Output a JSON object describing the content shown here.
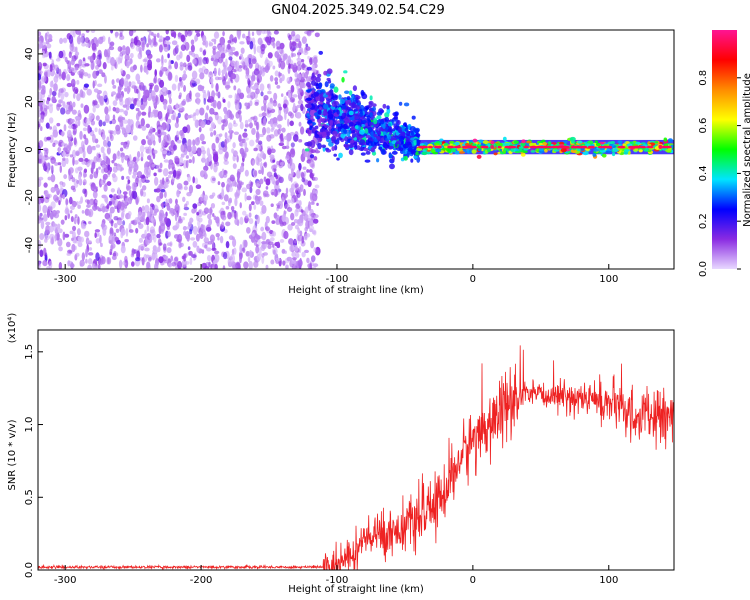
{
  "title": "GN04.2025.349.02.54.C29",
  "chart_data": [
    {
      "type": "heatmap",
      "xlabel": "Height of straight line (km)",
      "ylabel": "Frequency (Hz)",
      "xlim": [
        -320,
        148
      ],
      "ylim": [
        -50,
        50
      ],
      "xticks": [
        -300,
        -200,
        -100,
        0,
        100
      ],
      "yticks": [
        -40,
        -20,
        0,
        20,
        40
      ],
      "colorbar": {
        "label": "Normalized spectral amplitude",
        "range": [
          0,
          1
        ],
        "ticks": [
          "0.0",
          "0.2",
          "0.4",
          "0.6",
          "0.8"
        ],
        "colormap": [
          "#e8d8ff",
          "#8a2be2",
          "#0000ff",
          "#00e5ff",
          "#00ff00",
          "#ffff00",
          "#ff8c00",
          "#ff0000",
          "#ff1493"
        ]
      },
      "description_regions": [
        {
          "x_range": [
            -320,
            -122
          ],
          "freq_range": [
            -50,
            50
          ],
          "amplitude": 0.12
        },
        {
          "x_range": [
            -122,
            -40
          ],
          "freq_center_start": 18,
          "freq_center_end": 2,
          "amplitude": 0.35
        },
        {
          "x_range": [
            -40,
            148
          ],
          "freq_center": 1,
          "amplitude": 0.95
        }
      ]
    },
    {
      "type": "line",
      "xlabel": "Height of straight line (km)",
      "ylabel": "SNR (10 * v/v)",
      "scale_label": "(x10⁴)",
      "xlim": [
        -320,
        148
      ],
      "ylim": [
        0,
        1.65
      ],
      "xticks": [
        -300,
        -200,
        -100,
        0,
        100
      ],
      "yticks": [
        "0.0",
        "0.5",
        "1.0",
        "1.5"
      ],
      "color": "#ee2222",
      "trend": {
        "x": [
          -320,
          -110,
          -100,
          -90,
          -80,
          -70,
          -60,
          -50,
          -40,
          -30,
          -20,
          -10,
          0,
          10,
          20,
          30,
          40,
          60,
          80,
          100,
          120,
          148
        ],
        "y": [
          0.02,
          0.02,
          0.04,
          0.12,
          0.2,
          0.24,
          0.26,
          0.3,
          0.35,
          0.42,
          0.55,
          0.75,
          0.9,
          0.98,
          1.08,
          1.16,
          1.2,
          1.2,
          1.18,
          1.15,
          1.05,
          1.05
        ]
      }
    }
  ]
}
